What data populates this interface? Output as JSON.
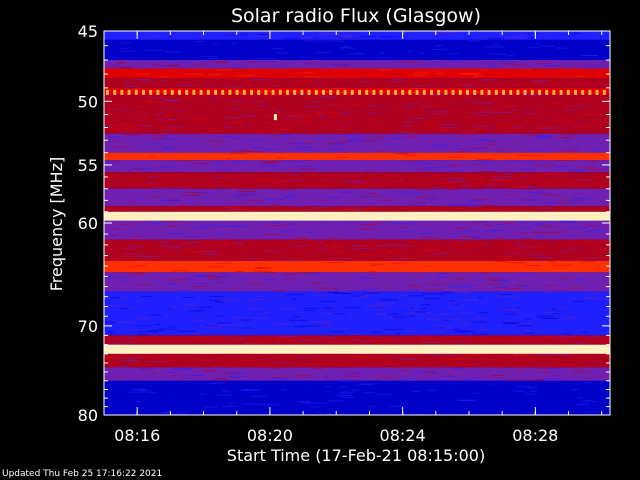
{
  "footer": {
    "updated": "Updated Thu Feb 25 17:16:22 2021"
  },
  "colors": {
    "background": "#000000",
    "axes": "#ffffff",
    "colormap": [
      "#0000c8",
      "#2020ff",
      "#7020b0",
      "#b00020",
      "#e00000",
      "#ff3000",
      "#ffb040",
      "#fff0c0"
    ]
  },
  "chart_data": {
    "type": "heatmap",
    "title": "Solar radio Flux (Glasgow)",
    "xlabel": "Start Time (17-Feb-21 08:15:00)",
    "ylabel": "Frequency [MHz]",
    "x_range": [
      "08:15:00",
      "08:30:15"
    ],
    "y_range": [
      45,
      80
    ],
    "y_axis": {
      "scale": "log",
      "inverted": true
    },
    "x_ticks": [
      "08:16",
      "08:20",
      "08:24",
      "08:28"
    ],
    "y_ticks": [
      "45",
      "50",
      "55",
      "60",
      "70",
      "80"
    ],
    "bands": [
      {
        "f0": 45.0,
        "f1": 45.6,
        "level": 1
      },
      {
        "f0": 45.6,
        "f1": 47.0,
        "level": 0
      },
      {
        "f0": 47.0,
        "f1": 47.6,
        "level": 2
      },
      {
        "f0": 47.6,
        "f1": 48.3,
        "level": 4
      },
      {
        "f0": 48.3,
        "f1": 49.0,
        "level": 3
      },
      {
        "f0": 49.0,
        "f1": 49.5,
        "level": 4
      },
      {
        "f0": 49.5,
        "f1": 50.5,
        "level": 3
      },
      {
        "f0": 50.5,
        "f1": 52.5,
        "level": 3
      },
      {
        "f0": 52.5,
        "f1": 54.0,
        "level": 2
      },
      {
        "f0": 54.0,
        "f1": 54.6,
        "level": 5
      },
      {
        "f0": 54.6,
        "f1": 55.6,
        "level": 2
      },
      {
        "f0": 55.6,
        "f1": 57.0,
        "level": 3
      },
      {
        "f0": 57.0,
        "f1": 58.5,
        "level": 2
      },
      {
        "f0": 58.5,
        "f1": 59.0,
        "level": 3
      },
      {
        "f0": 59.0,
        "f1": 59.8,
        "level": 7
      },
      {
        "f0": 59.8,
        "f1": 61.5,
        "level": 2
      },
      {
        "f0": 61.5,
        "f1": 63.5,
        "level": 3
      },
      {
        "f0": 63.5,
        "f1": 64.6,
        "level": 5
      },
      {
        "f0": 64.6,
        "f1": 66.5,
        "level": 2
      },
      {
        "f0": 66.5,
        "f1": 68.5,
        "level": 1
      },
      {
        "f0": 68.5,
        "f1": 71.0,
        "level": 1
      },
      {
        "f0": 71.0,
        "f1": 72.0,
        "level": 3
      },
      {
        "f0": 72.0,
        "f1": 73.0,
        "level": 7
      },
      {
        "f0": 73.0,
        "f1": 74.5,
        "level": 3
      },
      {
        "f0": 74.5,
        "f1": 76.0,
        "level": 2
      },
      {
        "f0": 76.0,
        "f1": 80.0,
        "level": 0
      }
    ],
    "features": [
      {
        "kind": "intermittent-line",
        "freq": 49.3,
        "level": 6
      },
      {
        "kind": "spot",
        "time": "08:20:10",
        "freq": 51.2,
        "level": 7
      }
    ]
  }
}
